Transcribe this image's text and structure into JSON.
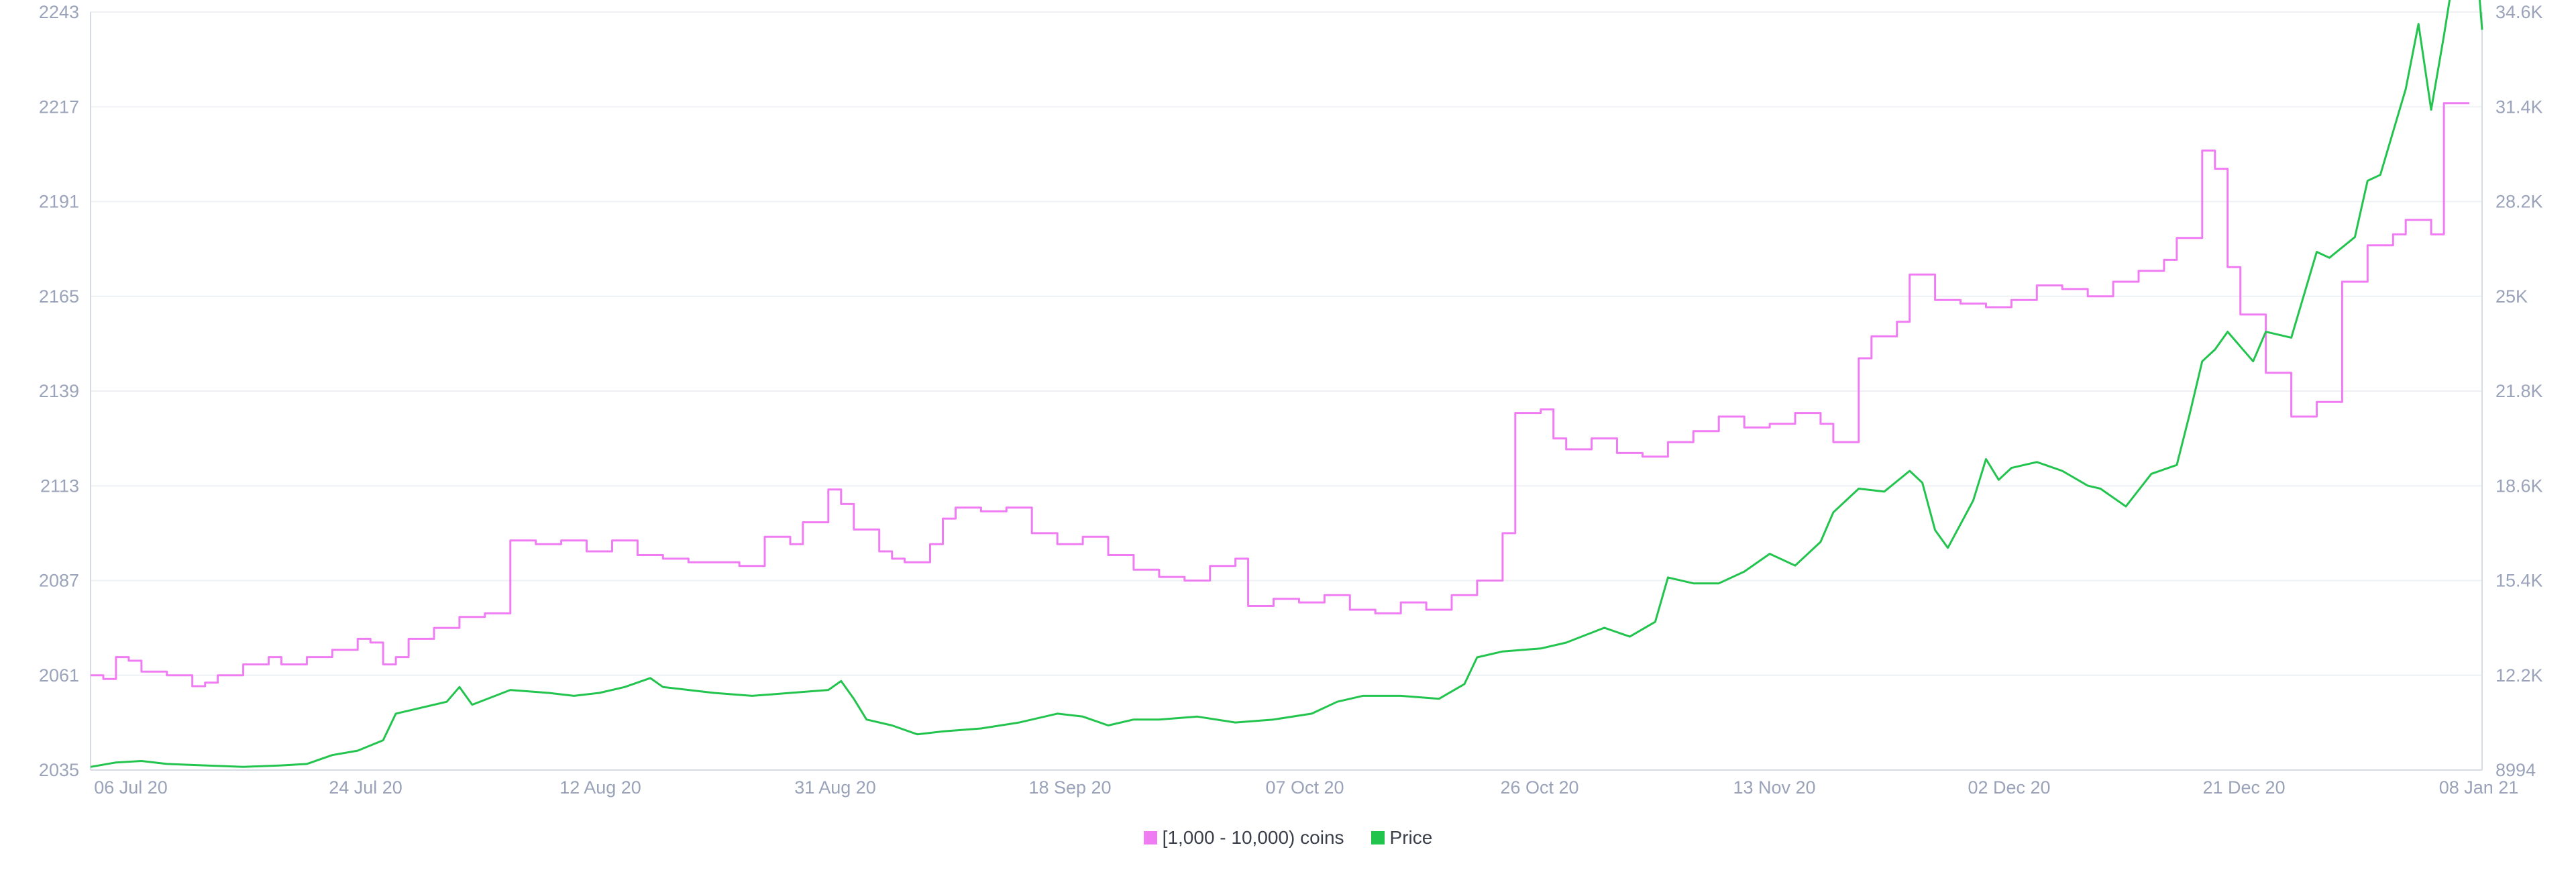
{
  "chart_data": {
    "type": "line",
    "title": "",
    "xlabel": "",
    "ylabel": "",
    "x_ticks": [
      "06 Jul 20",
      "24 Jul 20",
      "12 Aug 20",
      "31 Aug 20",
      "18 Sep 20",
      "07 Oct 20",
      "26 Oct 20",
      "13 Nov 20",
      "02 Dec 20",
      "21 Dec 20",
      "08 Jan 21"
    ],
    "x_range": [
      "2020-07-04",
      "2021-01-08"
    ],
    "y_left": {
      "ticks": [
        "2035",
        "2061",
        "2087",
        "2113",
        "2139",
        "2165",
        "2191",
        "2217",
        "2243"
      ],
      "range": [
        2035,
        2243
      ]
    },
    "y_right": {
      "ticks": [
        "8994",
        "12.2K",
        "15.4K",
        "18.6K",
        "21.8K",
        "25K",
        "28.2K",
        "31.4K",
        "34.6K"
      ],
      "range": [
        8994,
        34600
      ]
    },
    "grid": true,
    "legend_position": "bottom-center",
    "series": [
      {
        "name": "[1,000 - 10,000) coins",
        "color": "#f07cf3",
        "axis": "left",
        "points": [
          [
            "2020-07-04",
            2061
          ],
          [
            "2020-07-05",
            2060
          ],
          [
            "2020-07-06",
            2066
          ],
          [
            "2020-07-07",
            2065
          ],
          [
            "2020-07-08",
            2062
          ],
          [
            "2020-07-10",
            2061
          ],
          [
            "2020-07-12",
            2058
          ],
          [
            "2020-07-13",
            2059
          ],
          [
            "2020-07-14",
            2061
          ],
          [
            "2020-07-16",
            2064
          ],
          [
            "2020-07-18",
            2066
          ],
          [
            "2020-07-19",
            2064
          ],
          [
            "2020-07-21",
            2066
          ],
          [
            "2020-07-23",
            2068
          ],
          [
            "2020-07-25",
            2071
          ],
          [
            "2020-07-26",
            2070
          ],
          [
            "2020-07-27",
            2064
          ],
          [
            "2020-07-28",
            2066
          ],
          [
            "2020-07-29",
            2071
          ],
          [
            "2020-07-31",
            2074
          ],
          [
            "2020-08-02",
            2077
          ],
          [
            "2020-08-04",
            2078
          ],
          [
            "2020-08-06",
            2098
          ],
          [
            "2020-08-08",
            2097
          ],
          [
            "2020-08-10",
            2098
          ],
          [
            "2020-08-12",
            2095
          ],
          [
            "2020-08-14",
            2098
          ],
          [
            "2020-08-16",
            2094
          ],
          [
            "2020-08-18",
            2093
          ],
          [
            "2020-08-20",
            2092
          ],
          [
            "2020-08-22",
            2092
          ],
          [
            "2020-08-24",
            2091
          ],
          [
            "2020-08-26",
            2099
          ],
          [
            "2020-08-28",
            2097
          ],
          [
            "2020-08-29",
            2103
          ],
          [
            "2020-08-31",
            2112
          ],
          [
            "2020-09-01",
            2108
          ],
          [
            "2020-09-02",
            2101
          ],
          [
            "2020-09-04",
            2095
          ],
          [
            "2020-09-05",
            2093
          ],
          [
            "2020-09-06",
            2092
          ],
          [
            "2020-09-08",
            2097
          ],
          [
            "2020-09-09",
            2104
          ],
          [
            "2020-09-10",
            2107
          ],
          [
            "2020-09-12",
            2106
          ],
          [
            "2020-09-14",
            2107
          ],
          [
            "2020-09-16",
            2100
          ],
          [
            "2020-09-18",
            2097
          ],
          [
            "2020-09-20",
            2099
          ],
          [
            "2020-09-22",
            2094
          ],
          [
            "2020-09-24",
            2090
          ],
          [
            "2020-09-26",
            2088
          ],
          [
            "2020-09-28",
            2087
          ],
          [
            "2020-09-30",
            2091
          ],
          [
            "2020-10-02",
            2093
          ],
          [
            "2020-10-03",
            2080
          ],
          [
            "2020-10-05",
            2082
          ],
          [
            "2020-10-07",
            2081
          ],
          [
            "2020-10-09",
            2083
          ],
          [
            "2020-10-11",
            2079
          ],
          [
            "2020-10-13",
            2078
          ],
          [
            "2020-10-15",
            2081
          ],
          [
            "2020-10-17",
            2079
          ],
          [
            "2020-10-19",
            2083
          ],
          [
            "2020-10-21",
            2087
          ],
          [
            "2020-10-23",
            2100
          ],
          [
            "2020-10-24",
            2133
          ],
          [
            "2020-10-26",
            2134
          ],
          [
            "2020-10-27",
            2126
          ],
          [
            "2020-10-28",
            2123
          ],
          [
            "2020-10-30",
            2126
          ],
          [
            "2020-11-01",
            2122
          ],
          [
            "2020-11-03",
            2121
          ],
          [
            "2020-11-05",
            2125
          ],
          [
            "2020-11-07",
            2128
          ],
          [
            "2020-11-09",
            2132
          ],
          [
            "2020-11-11",
            2129
          ],
          [
            "2020-11-13",
            2130
          ],
          [
            "2020-11-15",
            2133
          ],
          [
            "2020-11-17",
            2130
          ],
          [
            "2020-11-18",
            2125
          ],
          [
            "2020-11-20",
            2148
          ],
          [
            "2020-11-21",
            2154
          ],
          [
            "2020-11-23",
            2158
          ],
          [
            "2020-11-24",
            2171
          ],
          [
            "2020-11-26",
            2164
          ],
          [
            "2020-11-28",
            2163
          ],
          [
            "2020-11-30",
            2162
          ],
          [
            "2020-12-02",
            2164
          ],
          [
            "2020-12-04",
            2168
          ],
          [
            "2020-12-06",
            2167
          ],
          [
            "2020-12-08",
            2165
          ],
          [
            "2020-12-10",
            2169
          ],
          [
            "2020-12-12",
            2172
          ],
          [
            "2020-12-14",
            2175
          ],
          [
            "2020-12-15",
            2181
          ],
          [
            "2020-12-17",
            2205
          ],
          [
            "2020-12-18",
            2200
          ],
          [
            "2020-12-19",
            2173
          ],
          [
            "2020-12-20",
            2160
          ],
          [
            "2020-12-22",
            2144
          ],
          [
            "2020-12-24",
            2132
          ],
          [
            "2020-12-26",
            2136
          ],
          [
            "2020-12-28",
            2169
          ],
          [
            "2020-12-30",
            2179
          ],
          [
            "2021-01-01",
            2182
          ],
          [
            "2021-01-02",
            2186
          ],
          [
            "2021-01-04",
            2182
          ],
          [
            "2021-01-05",
            2218
          ],
          [
            "2021-01-07",
            2218
          ]
        ]
      },
      {
        "name": "Price",
        "color": "#22c44e",
        "axis": "right",
        "points": [
          [
            "2020-07-04",
            9100
          ],
          [
            "2020-07-06",
            9250
          ],
          [
            "2020-07-08",
            9300
          ],
          [
            "2020-07-10",
            9200
          ],
          [
            "2020-07-13",
            9150
          ],
          [
            "2020-07-16",
            9100
          ],
          [
            "2020-07-19",
            9150
          ],
          [
            "2020-07-21",
            9200
          ],
          [
            "2020-07-23",
            9500
          ],
          [
            "2020-07-25",
            9650
          ],
          [
            "2020-07-27",
            10000
          ],
          [
            "2020-07-28",
            10900
          ],
          [
            "2020-07-30",
            11100
          ],
          [
            "2020-08-01",
            11300
          ],
          [
            "2020-08-02",
            11800
          ],
          [
            "2020-08-03",
            11200
          ],
          [
            "2020-08-06",
            11700
          ],
          [
            "2020-08-09",
            11600
          ],
          [
            "2020-08-11",
            11500
          ],
          [
            "2020-08-13",
            11600
          ],
          [
            "2020-08-15",
            11800
          ],
          [
            "2020-08-17",
            12100
          ],
          [
            "2020-08-18",
            11800
          ],
          [
            "2020-08-20",
            11700
          ],
          [
            "2020-08-22",
            11600
          ],
          [
            "2020-08-25",
            11500
          ],
          [
            "2020-08-28",
            11600
          ],
          [
            "2020-08-31",
            11700
          ],
          [
            "2020-09-01",
            12000
          ],
          [
            "2020-09-02",
            11400
          ],
          [
            "2020-09-03",
            10700
          ],
          [
            "2020-09-05",
            10500
          ],
          [
            "2020-09-07",
            10200
          ],
          [
            "2020-09-09",
            10300
          ],
          [
            "2020-09-12",
            10400
          ],
          [
            "2020-09-15",
            10600
          ],
          [
            "2020-09-18",
            10900
          ],
          [
            "2020-09-20",
            10800
          ],
          [
            "2020-09-22",
            10500
          ],
          [
            "2020-09-24",
            10700
          ],
          [
            "2020-09-26",
            10700
          ],
          [
            "2020-09-29",
            10800
          ],
          [
            "2020-10-02",
            10600
          ],
          [
            "2020-10-05",
            10700
          ],
          [
            "2020-10-08",
            10900
          ],
          [
            "2020-10-10",
            11300
          ],
          [
            "2020-10-12",
            11500
          ],
          [
            "2020-10-15",
            11500
          ],
          [
            "2020-10-18",
            11400
          ],
          [
            "2020-10-20",
            11900
          ],
          [
            "2020-10-21",
            12800
          ],
          [
            "2020-10-23",
            13000
          ],
          [
            "2020-10-26",
            13100
          ],
          [
            "2020-10-28",
            13300
          ],
          [
            "2020-10-31",
            13800
          ],
          [
            "2020-11-02",
            13500
          ],
          [
            "2020-11-04",
            14000
          ],
          [
            "2020-11-05",
            15500
          ],
          [
            "2020-11-07",
            15300
          ],
          [
            "2020-11-09",
            15300
          ],
          [
            "2020-11-11",
            15700
          ],
          [
            "2020-11-13",
            16300
          ],
          [
            "2020-11-15",
            15900
          ],
          [
            "2020-11-17",
            16700
          ],
          [
            "2020-11-18",
            17700
          ],
          [
            "2020-11-20",
            18500
          ],
          [
            "2020-11-22",
            18400
          ],
          [
            "2020-11-24",
            19100
          ],
          [
            "2020-11-25",
            18700
          ],
          [
            "2020-11-26",
            17100
          ],
          [
            "2020-11-27",
            16500
          ],
          [
            "2020-11-29",
            18100
          ],
          [
            "2020-11-30",
            19500
          ],
          [
            "2020-12-01",
            18800
          ],
          [
            "2020-12-02",
            19200
          ],
          [
            "2020-12-04",
            19400
          ],
          [
            "2020-12-06",
            19100
          ],
          [
            "2020-12-08",
            18600
          ],
          [
            "2020-12-09",
            18500
          ],
          [
            "2020-12-11",
            17900
          ],
          [
            "2020-12-13",
            19000
          ],
          [
            "2020-12-15",
            19300
          ],
          [
            "2020-12-16",
            21000
          ],
          [
            "2020-12-17",
            22800
          ],
          [
            "2020-12-18",
            23200
          ],
          [
            "2020-12-19",
            23800
          ],
          [
            "2020-12-21",
            22800
          ],
          [
            "2020-12-22",
            23800
          ],
          [
            "2020-12-24",
            23600
          ],
          [
            "2020-12-26",
            26500
          ],
          [
            "2020-12-27",
            26300
          ],
          [
            "2020-12-29",
            27000
          ],
          [
            "2020-12-30",
            28900
          ],
          [
            "2020-12-31",
            29100
          ],
          [
            "2021-01-02",
            32000
          ],
          [
            "2021-01-03",
            34200
          ],
          [
            "2021-01-04",
            31300
          ],
          [
            "2021-01-05",
            33800
          ],
          [
            "2021-01-06",
            36500
          ],
          [
            "2021-01-07",
            39500
          ],
          [
            "2021-01-08",
            34000
          ]
        ]
      }
    ]
  }
}
